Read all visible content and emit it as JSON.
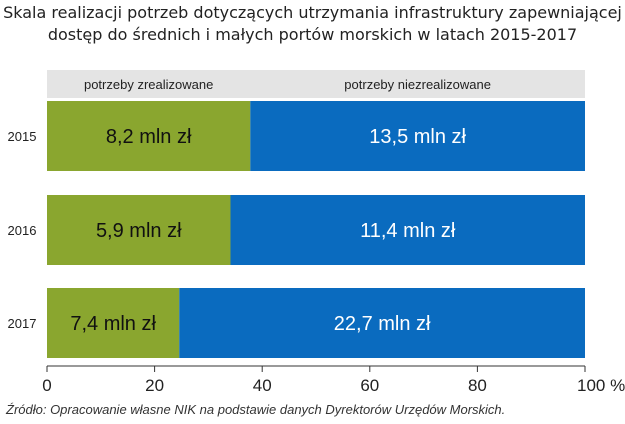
{
  "title_line1": "Skala realizacji potrzeb dotyczących utrzymania infrastruktury zapewniającej",
  "title_line2": "dostęp do średnich i małych portów morskich w latach 2015-2017",
  "source": "Źródło: Opracowanie własne NIK na podstawie danych Dyrektorów Urzędów Morskich.",
  "chart_data": {
    "type": "bar",
    "orientation": "horizontal",
    "stacked": true,
    "normalized_percent": true,
    "categories": [
      "2015",
      "2016",
      "2017"
    ],
    "series": [
      {
        "name": "potrzeby zrealizowane",
        "color": "#8aa62f",
        "values": [
          8.2,
          5.9,
          7.4
        ],
        "labels": [
          "8,2 mln zł",
          "5,9 mln zł",
          "7,4 mln zł"
        ]
      },
      {
        "name": "potrzeby niezrealizowane",
        "color": "#0a6bbf",
        "values": [
          13.5,
          11.4,
          22.7
        ],
        "labels": [
          "13,5 mln zł",
          "11,4 mln zł",
          "22,7 mln zł"
        ]
      }
    ],
    "xlim": [
      0,
      100
    ],
    "x_ticks": [
      "0",
      "20",
      "40",
      "60",
      "80",
      "100 %"
    ],
    "legend_placement": "top",
    "grid": false
  }
}
